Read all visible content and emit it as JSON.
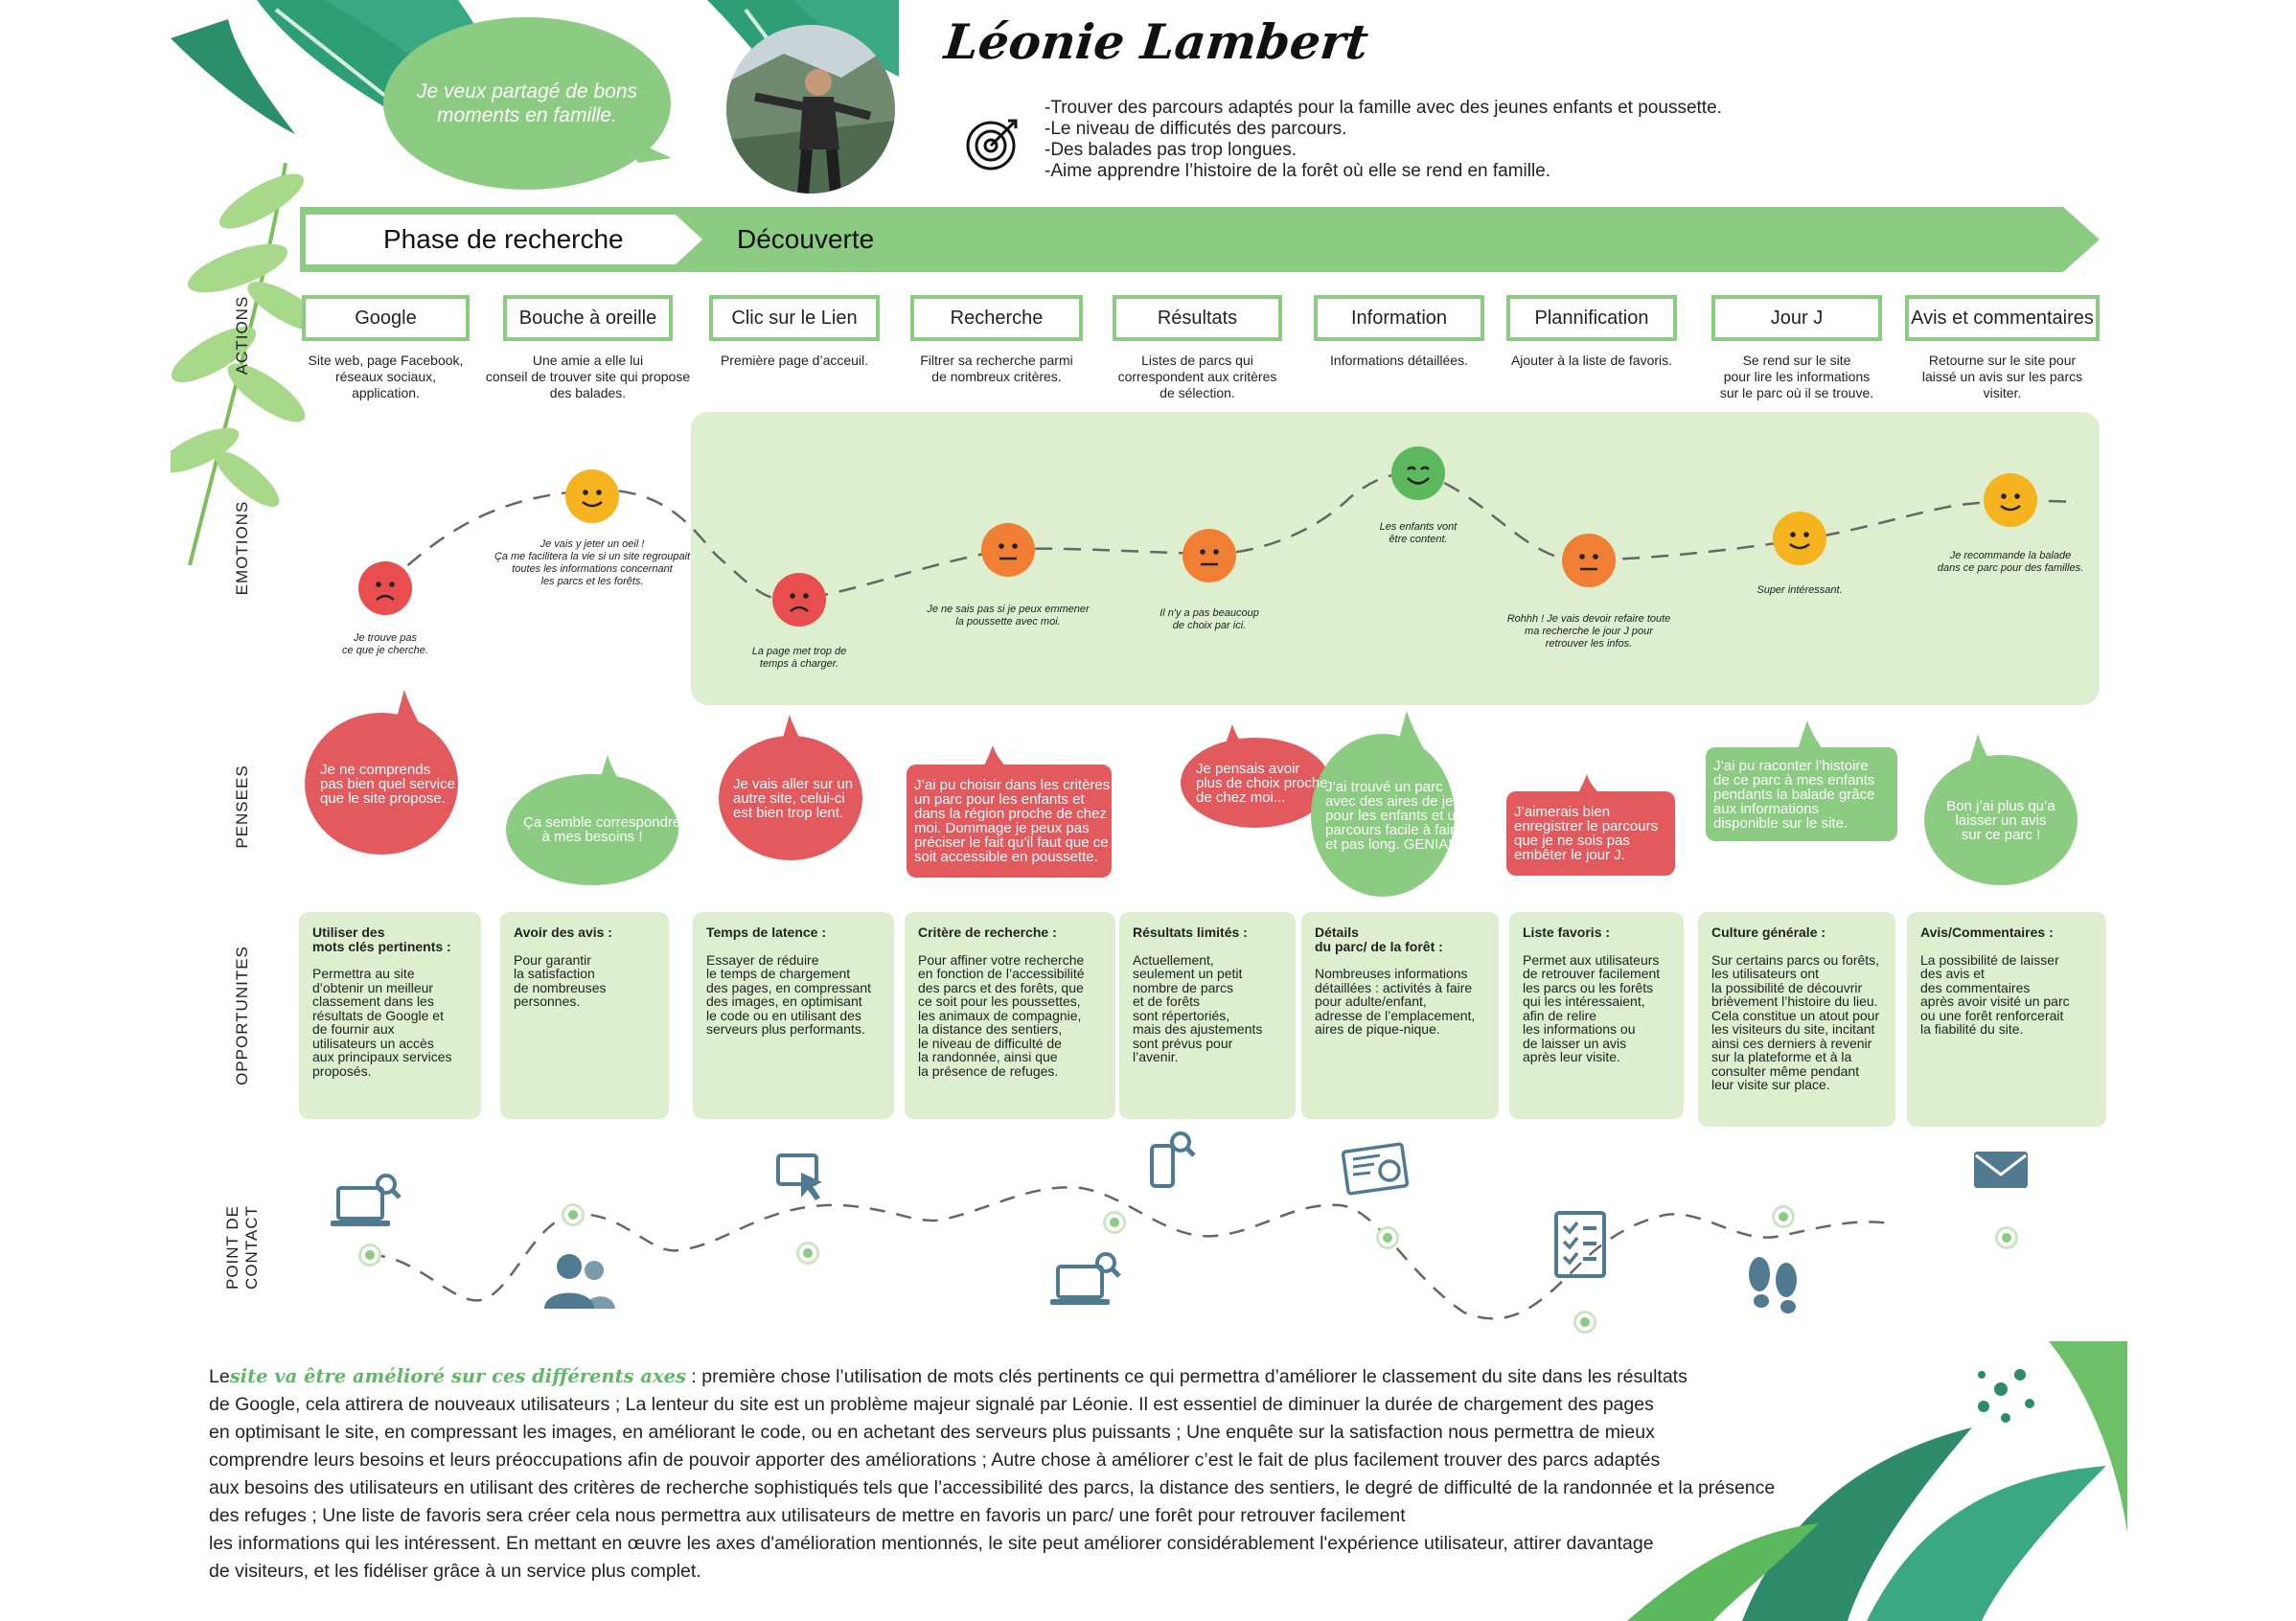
{
  "persona": {
    "name": "Léonie Lambert",
    "quote": "Je veux partagé de bons moments en famille.",
    "goals": [
      "-Trouver des parcours adaptés pour la famille avec des jeunes enfants et poussette.",
      "-Le niveau de difficutés des parcours.",
      "-Des balades pas trop longues.",
      "-Aime apprendre l’histoire de la forêt où elle se rend en famille."
    ],
    "goal_icon": "target-icon"
  },
  "phases": [
    "Phase de recherche",
    "Découverte"
  ],
  "row_labels": {
    "actions": "ACTIONS",
    "emotions": "EMOTIONS",
    "pensees": "PENSEES",
    "opportunites": "OPPORTUNITES",
    "contact_1": "POINT DE",
    "contact_2": "CONTACT"
  },
  "stages": [
    {
      "title": "Google",
      "desc": [
        "Site web, page Facebook,",
        "réseaux sociaux,",
        "application."
      ]
    },
    {
      "title": "Bouche à oreille",
      "desc": [
        "Une amie a elle lui",
        "conseil de trouver site qui propose",
        "des balades."
      ]
    },
    {
      "title": "Clic sur le Lien",
      "desc": [
        "Première page d’acceuil."
      ]
    },
    {
      "title": "Recherche",
      "desc": [
        "Filtrer sa recherche parmi",
        "de nombreux critères."
      ]
    },
    {
      "title": "Résultats",
      "desc": [
        "Listes de parcs qui",
        "correspondent aux critères",
        "de sélection."
      ]
    },
    {
      "title": "Information",
      "desc": [
        "Informations détaillées."
      ]
    },
    {
      "title": "Plannification",
      "desc": [
        "Ajouter à la liste de favoris."
      ]
    },
    {
      "title": "Jour J",
      "desc": [
        "Se rend sur le site",
        "pour lire les informations",
        "sur le parc où il se trouve."
      ]
    },
    {
      "title": "Avis et commentaires",
      "desc": [
        "Retourne sur le site pour",
        "laissé un avis sur les parcs",
        "visiter."
      ]
    }
  ],
  "emotions": [
    {
      "mood": "sad",
      "color": "#e94e4f",
      "caption": [
        "Je trouve pas",
        "ce que je cherche."
      ]
    },
    {
      "mood": "happy",
      "color": "#f5b31f",
      "caption": [
        "Je vais y jeter un oeil !",
        "Ça me facilitera la vie si un site regroupait",
        "toutes les informations concernant",
        "les parcs et les forêts."
      ]
    },
    {
      "mood": "sad",
      "color": "#e94e4f",
      "caption": [
        "La page met trop de",
        "temps à charger."
      ]
    },
    {
      "mood": "neutral",
      "color": "#f07f34",
      "caption": [
        "Je ne sais pas si je peux emmener",
        "la poussette avec moi."
      ]
    },
    {
      "mood": "neutral",
      "color": "#f07f34",
      "caption": [
        "Il n'y a pas beaucoup",
        "de choix par ici."
      ]
    },
    {
      "mood": "very-happy",
      "color": "#5cb85c",
      "caption": [
        "Les enfants vont",
        "être content."
      ]
    },
    {
      "mood": "neutral",
      "color": "#f07f34",
      "caption": [
        "Rohhh ! Je vais devoir refaire toute",
        "ma recherche le jour J pour",
        "retrouver les infos."
      ]
    },
    {
      "mood": "happy",
      "color": "#f5b31f",
      "caption": [
        "Super intéressant."
      ]
    },
    {
      "mood": "happy",
      "color": "#f5b31f",
      "caption": [
        "Je recommande la balade",
        "dans ce parc pour des familles."
      ]
    }
  ],
  "thoughts": [
    {
      "color": "red",
      "lines": [
        "Je ne comprends",
        "pas bien quel service",
        "que le site propose."
      ]
    },
    {
      "color": "green",
      "lines": [
        "Ça semble correspondre",
        "à mes besoins !"
      ]
    },
    {
      "color": "red",
      "lines": [
        "Je vais aller sur un",
        "autre site, celui-ci",
        "est bien trop lent."
      ]
    },
    {
      "color": "red",
      "lines": [
        "J’ai pu choisir dans les critères",
        "un parc pour les enfants et",
        "dans la région proche de chez",
        "moi. Dommage je peux pas",
        "préciser le fait qu’il faut que ce",
        "soit accessible en poussette."
      ]
    },
    {
      "color": "red",
      "lines": [
        "Je pensais avoir",
        "plus de choix proche",
        "de chez moi..."
      ]
    },
    {
      "color": "green",
      "lines": [
        "J’ai trouvé un parc",
        "avec des aires de jeux",
        "pour les enfants et un",
        "parcours facile à faire",
        "et pas long. GENIAL !"
      ]
    },
    {
      "color": "red",
      "lines": [
        "J’aimerais bien",
        "enregistrer le parcours",
        "que je ne sois pas",
        "embêter le jour J."
      ]
    },
    {
      "color": "green",
      "lines": [
        "J’ai pu raconter l’histoire",
        "de ce parc à mes enfants",
        "pendants la balade grâce",
        "aux informations",
        "disponible sur le site."
      ]
    },
    {
      "color": "green",
      "lines": [
        "Bon j’ai plus qu’a",
        "laisser un avis",
        "sur ce parc !"
      ]
    }
  ],
  "opportunities": [
    {
      "title": "Utiliser des\nmots clés pertinents :",
      "body": "Permettra au site\nd’obtenir un meilleur\nclassement dans les\nrésultats de Google et\nde fournir aux\nutilisateurs un accès\naux principaux services\nproposés."
    },
    {
      "title": "Avoir des avis :",
      "body": "Pour garantir\nla satisfaction\nde nombreuses\npersonnes."
    },
    {
      "title": "Temps de latence :",
      "body": "Essayer de réduire\nle temps de chargement\ndes pages, en compressant\ndes images, en optimisant\nle code ou en utilisant des\nserveurs plus performants."
    },
    {
      "title": "Critère de recherche :",
      "body": "Pour affiner votre recherche\nen fonction de l’accessibilité\ndes parcs et des forêts, que\nce soit pour les poussettes,\nles animaux de compagnie,\nla distance des sentiers,\nle niveau de difficulté de\nla randonnée, ainsi que\nla présence de refuges."
    },
    {
      "title": "Résultats limités :",
      "body": "Actuellement,\nseulement un petit\nnombre de parcs\net de forêts\nsont répertoriés,\nmais des ajustements\nsont prévus pour\nl’avenir."
    },
    {
      "title": "Détails\ndu parc/ de la forêt :",
      "body": "Nombreuses informations\ndétaillées : activités à faire\npour adulte/enfant,\nadresse de l’emplacement,\naires de pique-nique."
    },
    {
      "title": "Liste favoris :",
      "body": "Permet aux utilisateurs\nde retrouver facilement\nles parcs ou les forêts\nqui les intéressaient,\nafin de relire\nles informations ou\nde laisser un avis\naprès leur visite."
    },
    {
      "title": "Culture générale :",
      "body": "Sur certains parcs ou forêts,\nles utilisateurs ont\nla possibilité de découvrir\nbrièvement l’histoire du lieu.\nCela constitue un atout pour\nles visiteurs du site, incitant\nainsi ces derniers à revenir\nsur la plateforme et à la\nconsulter même pendant\nleur visite sur place."
    },
    {
      "title": "Avis/Commentaires :",
      "body": "La possibilité de laisser\ndes avis et\ndes commentaires\naprès avoir visité un parc\nou une forêt renforcerait\nla fiabilité du site."
    }
  ],
  "touchpoints": [
    "laptop-search-icon",
    "users-icon",
    "click-cursor-icon",
    "laptop-search-icon",
    "mobile-search-icon",
    "news-web-icon",
    "checklist-icon",
    "footprints-icon",
    "envelope-icon"
  ],
  "conclusion": {
    "lead": "Le",
    "highlight": "site va être amélioré sur ces différents axes",
    "lines": [
      " : première chose l’utilisation de mots clés pertinents ce qui permettra d’améliorer le classement du site dans les résultats",
      "de Google, cela attirera de nouveaux utilisateurs ; La lenteur du site est un problème majeur signalé par Léonie. Il est essentiel de diminuer la durée de chargement des pages",
      "en optimisant le site, en compressant les images, en améliorant le code, ou en achetant des serveurs plus puissants ; Une enquête sur la satisfaction nous permettra de mieux",
      "comprendre leurs besoins et leurs préoccupations afin de pouvoir apporter des améliorations ; Autre chose à améliorer c’est le fait de plus facilement trouver des parcs adaptés",
      "aux besoins des utilisateurs en utilisant des critères de recherche sophistiqués tels que l’accessibilité des parcs, la distance des sentiers, le degré de difficulté de la randonnée et la présence",
      "des refuges ; Une liste de favoris sera créer cela nous permettra aux utilisateurs de mettre en favoris un parc/ une forêt pour retrouver facilement",
      "les informations qui les intéressent. En mettant en œuvre les axes d'amélioration mentionnés, le site peut améliorer considérablement l'expérience utilisateur, attirer davantage",
      "de visiteurs, et les fidéliser grâce à un service plus complet."
    ]
  },
  "colors": {
    "green": "#8ccb82",
    "panel": "#deefd0",
    "red": "#e2595e",
    "touchpoint": "#8ccb82",
    "icon": "#4f7a8f"
  }
}
